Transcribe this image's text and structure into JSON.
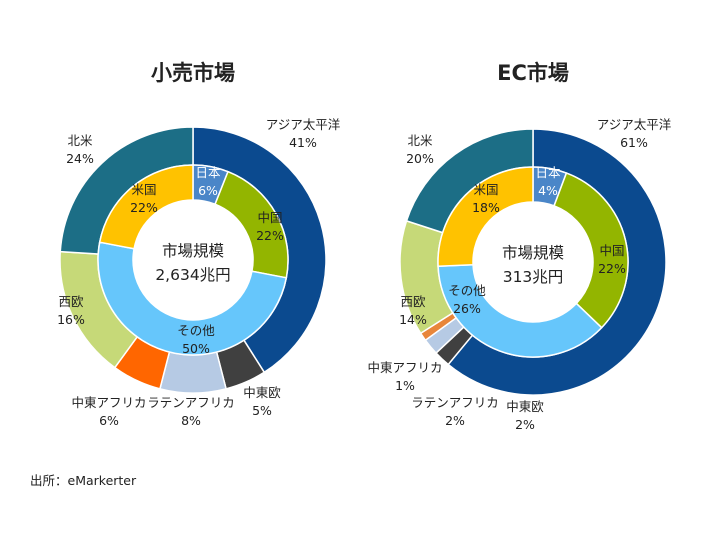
{
  "source": "出所：eMarkerter",
  "colors": {
    "asia_pacific": "#0b4a8f",
    "japan": "#4a86c8",
    "china": "#93b500",
    "us": "#ffc200",
    "north_america": "#1c6e86",
    "western_europe": "#c6d978",
    "mea": "#ff6600",
    "latin_america": "#b6cae4",
    "eastern_europe": "#404040",
    "other": "#66c6fb"
  },
  "chart_data": [
    {
      "type": "pie",
      "title": "小売市場",
      "center_label": [
        "市場規模",
        "2,634兆円"
      ],
      "outer": [
        {
          "name": "アジア太平洋",
          "value": 41,
          "label": "41%",
          "color": "#0b4a8f"
        },
        {
          "name": "中東欧",
          "value": 5,
          "label": "5%",
          "color": "#404040"
        },
        {
          "name": "ラテンアフリカ",
          "value": 8,
          "label": "8%",
          "color": "#b6cae4"
        },
        {
          "name": "中東アフリカ",
          "value": 6,
          "label": "6%",
          "color": "#ff6600"
        },
        {
          "name": "西欧",
          "value": 16,
          "label": "16%",
          "color": "#c6d978"
        },
        {
          "name": "北米",
          "value": 24,
          "label": "24%",
          "color": "#1c6e86"
        }
      ],
      "inner": [
        {
          "name": "日本",
          "value": 6,
          "label": "6%",
          "color": "#4a86c8"
        },
        {
          "name": "中国",
          "value": 22,
          "label": "22%",
          "color": "#93b500"
        },
        {
          "name": "その他",
          "value": 50,
          "label": "50%",
          "color": "#66c6fb"
        },
        {
          "name": "米国",
          "value": 22,
          "label": "22%",
          "color": "#ffc200"
        }
      ]
    },
    {
      "type": "pie",
      "title": "EC市場",
      "center_label": [
        "市場規模",
        "313兆円"
      ],
      "outer": [
        {
          "name": "アジア太平洋",
          "value": 61,
          "label": "61%",
          "color": "#0b4a8f"
        },
        {
          "name": "中東欧",
          "value": 2,
          "label": "2%",
          "color": "#404040"
        },
        {
          "name": "ラテンアフリカ",
          "value": 2,
          "label": "2%",
          "color": "#b6cae4"
        },
        {
          "name": "中東アフリカ",
          "value": 1,
          "label": "1%",
          "color": "#e8863a"
        },
        {
          "name": "西欧",
          "value": 14,
          "label": "14%",
          "color": "#c6d978"
        },
        {
          "name": "北米",
          "value": 20,
          "label": "20%",
          "color": "#1c6e86"
        }
      ],
      "inner": [
        {
          "name": "日本",
          "value": 4,
          "label": "4%",
          "color": "#4a86c8"
        },
        {
          "name": "中国",
          "value": 22,
          "label": "22%",
          "color": "#93b500"
        },
        {
          "name": "その他",
          "value": 26,
          "label": "26%",
          "color": "#66c6fb"
        },
        {
          "name": "米国",
          "value": 18,
          "label": "18%",
          "color": "#ffc200"
        }
      ]
    }
  ]
}
